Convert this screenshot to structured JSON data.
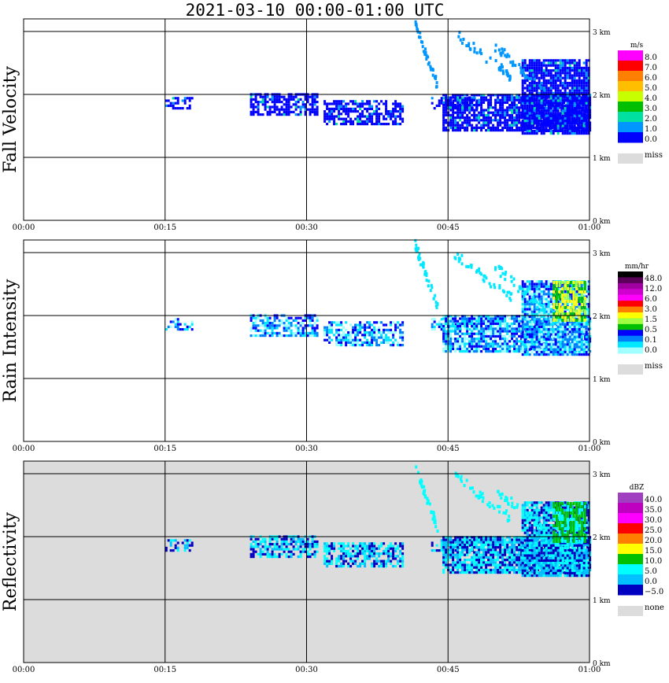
{
  "title": "2021-03-10   00:00-01:00 UTC",
  "colors": {
    "missing_background": "#dcdcdc",
    "axis": "#000000"
  },
  "chart_data": [
    {
      "type": "heatmap",
      "ylabel": "Fall Velocity",
      "x_tick_labels": [
        "00:00",
        "00:15",
        "00:30",
        "00:45",
        "01:00"
      ],
      "y_tick_labels": [
        "0 km",
        "1 km",
        "2 km",
        "3 km"
      ],
      "xlim": [
        "00:00",
        "01:00"
      ],
      "ylim_km": [
        0,
        3.2
      ],
      "grid": true,
      "background": "white",
      "colorbar": {
        "unit": "m/s",
        "labels": [
          "8.0",
          "7.0",
          "6.0",
          "5.0",
          "4.0",
          "3.0",
          "2.0",
          "1.0",
          "0.0"
        ],
        "colors": [
          "#ff00ff",
          "#ff0000",
          "#ff7f00",
          "#ffbf00",
          "#c8ff00",
          "#00bf00",
          "#00e0a0",
          "#0096ff",
          "#0000ff"
        ],
        "missing_label": "miss"
      }
    },
    {
      "type": "heatmap",
      "ylabel": "Rain Intensity",
      "x_tick_labels": [
        "00:00",
        "00:15",
        "00:30",
        "00:45",
        "01:00"
      ],
      "y_tick_labels": [
        "0 km",
        "1 km",
        "2 km",
        "3 km"
      ],
      "xlim": [
        "00:00",
        "01:00"
      ],
      "ylim_km": [
        0,
        3.2
      ],
      "grid": true,
      "background": "white",
      "colorbar": {
        "unit": "mm/hr",
        "labels": [
          "48.0",
          "12.0",
          "6.0",
          "3.0",
          "1.5",
          "0.5",
          "0.1",
          "0.0"
        ],
        "colors": [
          "#000000",
          "#5a005a",
          "#a000a0",
          "#d000d0",
          "#ff00ff",
          "#ff0000",
          "#ff7f00",
          "#ffff00",
          "#a0ff40",
          "#00c000",
          "#0000ff",
          "#0080ff",
          "#00e8ff",
          "#a0ffff"
        ],
        "missing_label": "miss"
      }
    },
    {
      "type": "heatmap",
      "ylabel": "Reflectivity",
      "x_tick_labels": [
        "00:00",
        "00:15",
        "00:30",
        "00:45",
        "01:00"
      ],
      "y_tick_labels": [
        "0 km",
        "1 km",
        "2 km",
        "3 km"
      ],
      "xlim": [
        "00:00",
        "01:00"
      ],
      "ylim_km": [
        0,
        3.2
      ],
      "grid": true,
      "background": "missing",
      "colorbar": {
        "unit": "dBZ",
        "labels": [
          "40.0",
          "35.0",
          "30.0",
          "25.0",
          "20.0",
          "15.0",
          "10.0",
          "5.0",
          "0.0",
          "−5.0"
        ],
        "colors": [
          "#a040c0",
          "#c000c0",
          "#ff00ff",
          "#ff0000",
          "#ff7f00",
          "#ffff00",
          "#00c000",
          "#00ffff",
          "#00c0ff",
          "#0000c0"
        ],
        "missing_label": "none"
      }
    }
  ]
}
